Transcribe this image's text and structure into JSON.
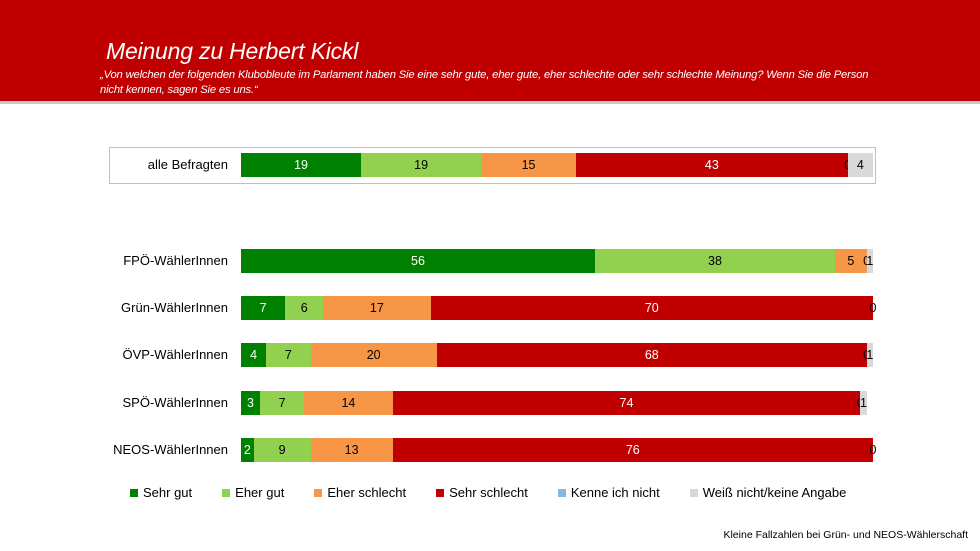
{
  "header": {
    "title": "Meinung zu Herbert Kickl",
    "subtitle": "„Von welchen der folgenden Klubobleute im Parlament haben Sie eine sehr gute, eher gute, eher schlechte oder sehr schlechte Meinung? Wenn Sie die Person nicht kennen, sagen Sie es uns.“"
  },
  "colors": {
    "header_bg": "#c00000",
    "sehr_gut": "#008000",
    "eher_gut": "#92d050",
    "eher_schlecht": "#f79646",
    "sehr_schlecht": "#c00000",
    "kenne_ich_nicht": "#8db4e2",
    "weiss_nicht": "#d9d9d9"
  },
  "legend": [
    {
      "label": "Sehr gut",
      "color": "#008000"
    },
    {
      "label": "Eher gut",
      "color": "#92d050"
    },
    {
      "label": "Eher schlecht",
      "color": "#f79646"
    },
    {
      "label": "Sehr schlecht",
      "color": "#c00000"
    },
    {
      "label": "Kenne ich nicht",
      "color": "#8db4e2"
    },
    {
      "label": "Weiß nicht/keine Angabe",
      "color": "#d9d9d9"
    }
  ],
  "footnote": "Kleine Fallzahlen bei Grün- und NEOS-Wählerschaft",
  "chart_data": {
    "type": "bar",
    "orientation": "horizontal",
    "stacked": true,
    "title": "Meinung zu Herbert Kickl",
    "subtitle": "„Von welchen der folgenden Klubobleute im Parlament haben Sie eine sehr gute, eher gute, eher schlechte oder sehr schlechte Meinung? Wenn Sie die Person nicht kennen, sagen Sie es uns.“",
    "xlabel": "",
    "ylabel": "",
    "unit": "%",
    "xlim": [
      0,
      100
    ],
    "grid": false,
    "legend_position": "bottom",
    "categories": [
      "alle Befragten",
      "FPÖ-WählerInnen",
      "Grün-WählerInnen",
      "ÖVP-WählerInnen",
      "SPÖ-WählerInnen",
      "NEOS-WählerInnen"
    ],
    "series": [
      {
        "name": "Sehr gut",
        "color": "#008000",
        "values": [
          19,
          56,
          7,
          4,
          3,
          2
        ]
      },
      {
        "name": "Eher gut",
        "color": "#92d050",
        "values": [
          19,
          38,
          6,
          7,
          7,
          9
        ]
      },
      {
        "name": "Eher schlecht",
        "color": "#f79646",
        "values": [
          15,
          5,
          17,
          20,
          14,
          13
        ]
      },
      {
        "name": "Sehr schlecht",
        "color": "#c00000",
        "values": [
          43,
          0,
          70,
          68,
          74,
          76
        ]
      },
      {
        "name": "Kenne ich nicht",
        "color": "#8db4e2",
        "values": [
          0,
          0,
          0,
          0,
          0,
          0
        ]
      },
      {
        "name": "Weiß nicht/keine Angabe",
        "color": "#d9d9d9",
        "values": [
          4,
          1,
          0,
          1,
          1,
          0
        ]
      }
    ],
    "value_labels": [
      [
        "19",
        "19",
        "15",
        "43",
        "0",
        "4"
      ],
      [
        "56",
        "38",
        "5",
        "",
        "0",
        "1"
      ],
      [
        "7",
        "6",
        "17",
        "70",
        "",
        "0"
      ],
      [
        "4",
        "7",
        "20",
        "68",
        "0",
        "1"
      ],
      [
        "3",
        "7",
        "14",
        "74",
        "0",
        "1"
      ],
      [
        "2",
        "9",
        "13",
        "76",
        "",
        "0"
      ]
    ],
    "annotations": [
      "Kleine Fallzahlen bei Grün- und NEOS-Wählerschaft"
    ]
  }
}
